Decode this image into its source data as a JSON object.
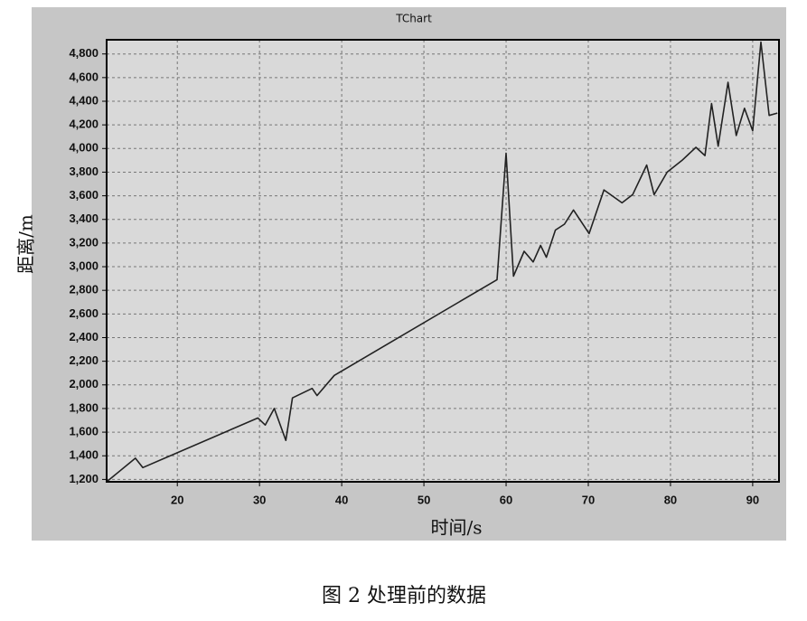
{
  "chart_data": {
    "type": "line",
    "title": "TChart",
    "x_label": "时间/s",
    "y_label": "距离/m",
    "caption": "图 2  处理前的数据",
    "x": [
      11.4,
      14.9,
      15.8,
      29.8,
      30.7,
      31.8,
      33.2,
      34,
      36.4,
      37,
      39.1,
      58.9,
      60,
      60.9,
      62.2,
      63.3,
      64.2,
      64.9,
      66,
      67.1,
      68.2,
      70.1,
      71.9,
      74.1,
      75.4,
      77.1,
      78,
      79.6,
      81.4,
      83.1,
      84.2,
      85,
      85.8,
      87,
      88,
      89,
      90,
      91,
      92,
      93
    ],
    "values": [
      1180,
      1380,
      1300,
      1720,
      1660,
      1800,
      1530,
      1890,
      1970,
      1910,
      2080,
      2890,
      3960,
      2920,
      3130,
      3040,
      3180,
      3080,
      3310,
      3360,
      3480,
      3280,
      3650,
      3540,
      3610,
      3860,
      3610,
      3800,
      3900,
      4010,
      3940,
      4380,
      4020,
      4560,
      4110,
      4340,
      4150,
      4900,
      4280,
      4300
    ],
    "color": "#222222",
    "xlim": [
      11.4,
      93.2
    ],
    "xticks": [
      20,
      30,
      40,
      50,
      60,
      70,
      80,
      90
    ],
    "ylim": [
      1180,
      4920
    ],
    "yticks": [
      {
        "value": 1200,
        "label": "1,200"
      },
      {
        "value": 1400,
        "label": "1,400"
      },
      {
        "value": 1600,
        "label": "1,600"
      },
      {
        "value": 1800,
        "label": "1,800"
      },
      {
        "value": 2000,
        "label": "2,000"
      },
      {
        "value": 2200,
        "label": "2,200"
      },
      {
        "value": 2400,
        "label": "2,400"
      },
      {
        "value": 2600,
        "label": "2,600"
      },
      {
        "value": 2800,
        "label": "2,800"
      },
      {
        "value": 3000,
        "label": "3,000"
      },
      {
        "value": 3200,
        "label": "3,200"
      },
      {
        "value": 3400,
        "label": "3,400"
      },
      {
        "value": 3600,
        "label": "3,600"
      },
      {
        "value": 3800,
        "label": "3,800"
      },
      {
        "value": 4000,
        "label": "4,000"
      },
      {
        "value": 4200,
        "label": "4,200"
      },
      {
        "value": 4400,
        "label": "4,400"
      },
      {
        "value": 4600,
        "label": "4,600"
      },
      {
        "value": 4800,
        "label": "4,800"
      }
    ],
    "grid": true
  }
}
